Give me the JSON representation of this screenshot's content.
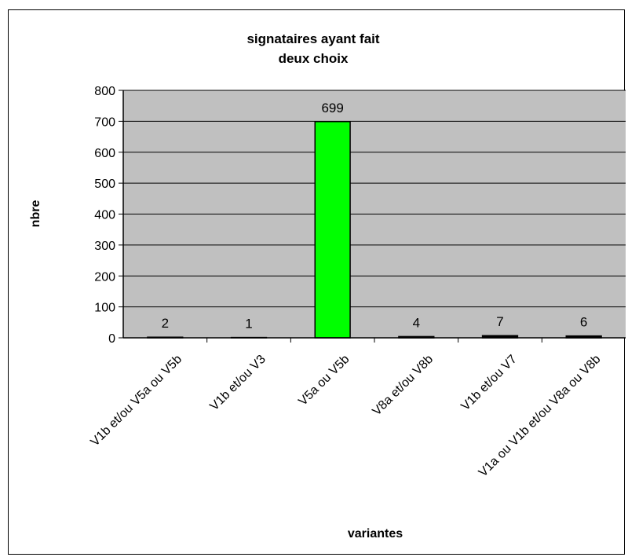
{
  "chart_data": {
    "type": "bar",
    "title_lines": [
      "signataires ayant fait",
      "deux choix"
    ],
    "xlabel": "variantes",
    "ylabel": "nbre",
    "categories": [
      "V1b et/ou V5a ou V5b",
      "V1b et/ou V3",
      "V5a ou V5b",
      "V8a et/ou V8b",
      "V1b et/ou V7",
      "V1a ou V1b et/ou V8a ou V8b"
    ],
    "values": [
      2,
      1,
      699,
      4,
      7,
      6
    ],
    "data_labels": [
      "2",
      "1",
      "699",
      "4",
      "7",
      "6"
    ],
    "ylim": [
      0,
      800
    ],
    "yticks": [
      0,
      100,
      200,
      300,
      400,
      500,
      600,
      700,
      800
    ],
    "grid": true,
    "legend": "none",
    "colors": {
      "plot_background": "#c0c0c0",
      "highlight_bar": "#00ff00",
      "other_bars": "#000000",
      "gridlines": "#000000"
    }
  }
}
